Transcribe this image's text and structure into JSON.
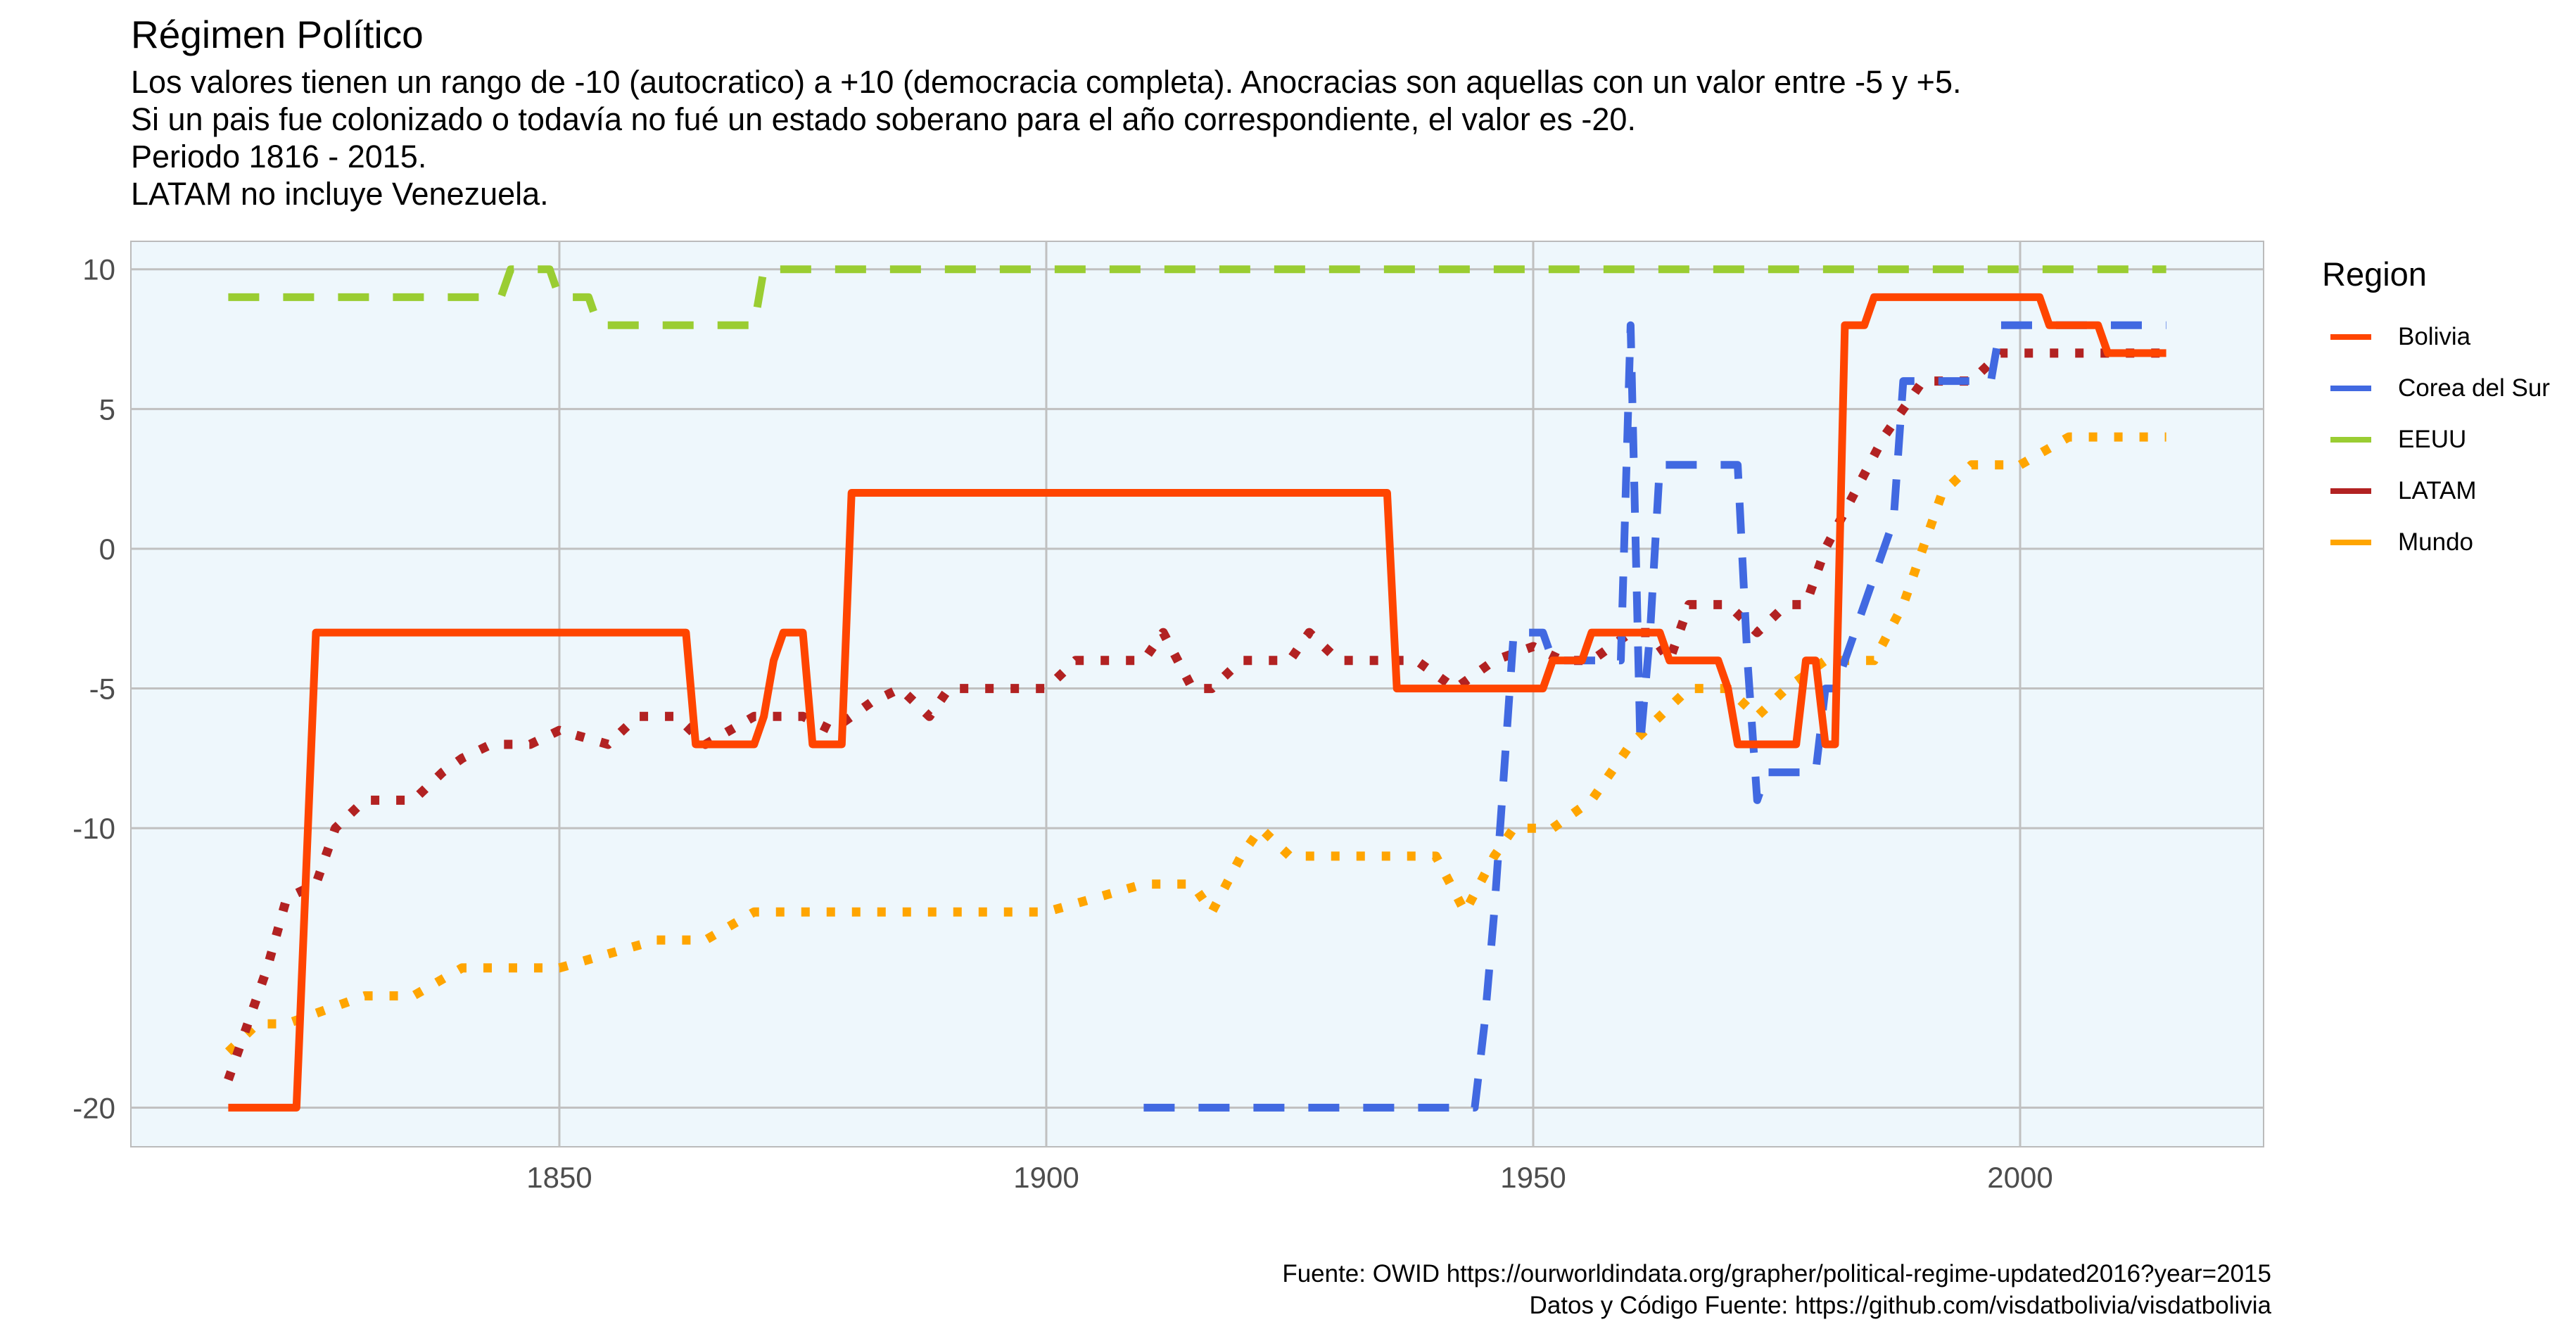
{
  "title": "Régimen Político",
  "subtitle": [
    "Los valores tienen un rango de -10 (autocratico) a +10 (democracia completa). Anocracias son aquellas con un valor entre -5 y +5.",
    "Si un pais fue colonizado o todavía no fué un estado soberano para el año correspondiente, el valor es -20.",
    "Periodo 1816 - 2015.",
    "LATAM no incluye Venezuela."
  ],
  "caption": [
    "Fuente: OWID https://ourworldindata.org/grapher/political-regime-updated2016?year=2015",
    "Datos y Código Fuente: https://github.com/visdatbolivia/visdatbolivia"
  ],
  "legend": {
    "title": "Region"
  },
  "colors": {
    "panel": "#eef7fc",
    "grid": "#c0c0c0",
    "Bolivia": "#ff4500",
    "Corea del Sur": "#4169e1",
    "EEUU": "#9acd32",
    "LATAM": "#b22222",
    "Mundo": "#ffa500"
  },
  "chart_data": {
    "type": "line",
    "xlim": [
      1806,
      2025
    ],
    "ylim": [
      -21.4,
      11
    ],
    "x_ticks": [
      1850,
      1900,
      1950,
      2000
    ],
    "y_ticks": [
      10,
      5,
      0,
      -5,
      -10,
      -20
    ],
    "grid": true,
    "legend_position": "right",
    "series": [
      {
        "name": "Bolivia",
        "style": "solid",
        "points": [
          [
            1816,
            -20
          ],
          [
            1823,
            -20
          ],
          [
            1825,
            -3
          ],
          [
            1863,
            -3
          ],
          [
            1864,
            -7
          ],
          [
            1870,
            -7
          ],
          [
            1871,
            -6
          ],
          [
            1872,
            -4
          ],
          [
            1873,
            -3
          ],
          [
            1875,
            -3
          ],
          [
            1876,
            -7
          ],
          [
            1879,
            -7
          ],
          [
            1880,
            2
          ],
          [
            1935,
            2
          ],
          [
            1936,
            -5
          ],
          [
            1951,
            -5
          ],
          [
            1952,
            -4
          ],
          [
            1955,
            -4
          ],
          [
            1956,
            -3
          ],
          [
            1963,
            -3
          ],
          [
            1964,
            -4
          ],
          [
            1969,
            -4
          ],
          [
            1970,
            -5
          ],
          [
            1971,
            -7
          ],
          [
            1977,
            -7
          ],
          [
            1978,
            -4
          ],
          [
            1979,
            -4
          ],
          [
            1980,
            -7
          ],
          [
            1981,
            -7
          ],
          [
            1982,
            8
          ],
          [
            1984,
            8
          ],
          [
            1985,
            9
          ],
          [
            2002,
            9
          ],
          [
            2003,
            8
          ],
          [
            2007,
            8
          ],
          [
            2008,
            8
          ],
          [
            2009,
            7
          ],
          [
            2015,
            7
          ]
        ]
      },
      {
        "name": "Corea del Sur",
        "style": "dashed",
        "points": [
          [
            1910,
            -20
          ],
          [
            1944,
            -20
          ],
          [
            1945,
            -17
          ],
          [
            1946,
            -13
          ],
          [
            1947,
            -8
          ],
          [
            1948,
            -3
          ],
          [
            1950,
            -3
          ],
          [
            1951,
            -3
          ],
          [
            1952,
            -4
          ],
          [
            1956,
            -4
          ],
          [
            1959,
            -4
          ],
          [
            1960,
            8
          ],
          [
            1961,
            -7
          ],
          [
            1962,
            -3
          ],
          [
            1963,
            3
          ],
          [
            1971,
            3
          ],
          [
            1972,
            -4
          ],
          [
            1973,
            -9
          ],
          [
            1974,
            -8
          ],
          [
            1979,
            -8
          ],
          [
            1980,
            -5
          ],
          [
            1981,
            -5
          ],
          [
            1987,
            1
          ],
          [
            1988,
            6
          ],
          [
            1992,
            6
          ],
          [
            1997,
            6
          ],
          [
            1998,
            8
          ],
          [
            2015,
            8
          ]
        ]
      },
      {
        "name": "EEUU",
        "style": "dashed",
        "points": [
          [
            1816,
            9
          ],
          [
            1844,
            9
          ],
          [
            1845,
            10
          ],
          [
            1849,
            10
          ],
          [
            1850,
            9
          ],
          [
            1853,
            9
          ],
          [
            1854,
            8
          ],
          [
            1869,
            8
          ],
          [
            1870,
            8
          ],
          [
            1871,
            10
          ],
          [
            2015,
            10
          ]
        ]
      },
      {
        "name": "LATAM",
        "style": "dotted",
        "points": [
          [
            1816,
            -19
          ],
          [
            1818,
            -17
          ],
          [
            1820,
            -15
          ],
          [
            1822,
            -12.5
          ],
          [
            1825,
            -12
          ],
          [
            1827,
            -10
          ],
          [
            1830,
            -9
          ],
          [
            1835,
            -9
          ],
          [
            1838,
            -8
          ],
          [
            1840,
            -7.5
          ],
          [
            1843,
            -7
          ],
          [
            1847,
            -7
          ],
          [
            1850,
            -6.5
          ],
          [
            1855,
            -7
          ],
          [
            1858,
            -6
          ],
          [
            1862,
            -6
          ],
          [
            1865,
            -7
          ],
          [
            1870,
            -6
          ],
          [
            1875,
            -6
          ],
          [
            1878,
            -6.5
          ],
          [
            1882,
            -5.5
          ],
          [
            1885,
            -5
          ],
          [
            1888,
            -6
          ],
          [
            1890,
            -5
          ],
          [
            1895,
            -5
          ],
          [
            1900,
            -5
          ],
          [
            1903,
            -4
          ],
          [
            1908,
            -4
          ],
          [
            1910,
            -4
          ],
          [
            1912,
            -3
          ],
          [
            1915,
            -5
          ],
          [
            1917,
            -5
          ],
          [
            1920,
            -4
          ],
          [
            1923,
            -4
          ],
          [
            1925,
            -4
          ],
          [
            1927,
            -3
          ],
          [
            1930,
            -4
          ],
          [
            1933,
            -4
          ],
          [
            1935,
            -4
          ],
          [
            1938,
            -4
          ],
          [
            1940,
            -4.5
          ],
          [
            1942,
            -5
          ],
          [
            1946,
            -4
          ],
          [
            1950,
            -3.5
          ],
          [
            1953,
            -4
          ],
          [
            1956,
            -4
          ],
          [
            1960,
            -3
          ],
          [
            1962,
            -3
          ],
          [
            1964,
            -4
          ],
          [
            1966,
            -2
          ],
          [
            1970,
            -2
          ],
          [
            1973,
            -3
          ],
          [
            1976,
            -2
          ],
          [
            1978,
            -2
          ],
          [
            1980,
            0
          ],
          [
            1983,
            2
          ],
          [
            1986,
            4
          ],
          [
            1988,
            5
          ],
          [
            1990,
            6
          ],
          [
            1995,
            6
          ],
          [
            1998,
            7
          ],
          [
            2000,
            7
          ],
          [
            2005,
            7
          ],
          [
            2010,
            7
          ],
          [
            2015,
            7
          ]
        ]
      },
      {
        "name": "Mundo",
        "style": "dotted",
        "points": [
          [
            1816,
            -18
          ],
          [
            1819,
            -17
          ],
          [
            1822,
            -17
          ],
          [
            1826,
            -16.5
          ],
          [
            1830,
            -16
          ],
          [
            1835,
            -16
          ],
          [
            1840,
            -15
          ],
          [
            1845,
            -15
          ],
          [
            1850,
            -15
          ],
          [
            1855,
            -14.5
          ],
          [
            1860,
            -14
          ],
          [
            1865,
            -14
          ],
          [
            1870,
            -13
          ],
          [
            1880,
            -13
          ],
          [
            1890,
            -13
          ],
          [
            1900,
            -13
          ],
          [
            1905,
            -12.5
          ],
          [
            1910,
            -12
          ],
          [
            1915,
            -12
          ],
          [
            1917,
            -13
          ],
          [
            1920,
            -11
          ],
          [
            1922,
            -10
          ],
          [
            1925,
            -11
          ],
          [
            1930,
            -11
          ],
          [
            1935,
            -11
          ],
          [
            1940,
            -11
          ],
          [
            1943,
            -13
          ],
          [
            1946,
            -11
          ],
          [
            1948,
            -10
          ],
          [
            1952,
            -10
          ],
          [
            1956,
            -9
          ],
          [
            1960,
            -7
          ],
          [
            1963,
            -6
          ],
          [
            1966,
            -5
          ],
          [
            1970,
            -5
          ],
          [
            1973,
            -6
          ],
          [
            1976,
            -5
          ],
          [
            1980,
            -4
          ],
          [
            1985,
            -4
          ],
          [
            1988,
            -2
          ],
          [
            1990,
            0
          ],
          [
            1992,
            2
          ],
          [
            1995,
            3
          ],
          [
            2000,
            3
          ],
          [
            2005,
            4
          ],
          [
            2010,
            4
          ],
          [
            2015,
            4
          ]
        ]
      }
    ]
  }
}
